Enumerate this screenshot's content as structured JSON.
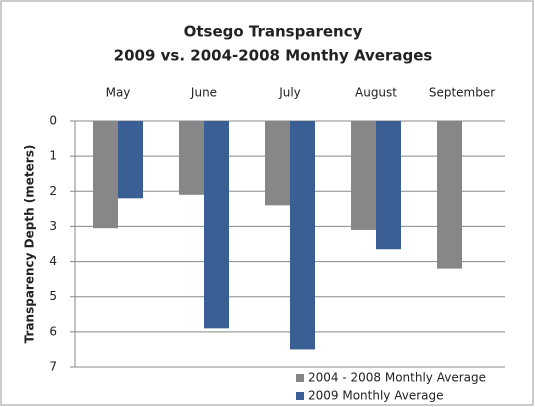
{
  "chart_data": {
    "type": "bar",
    "title": "Otsego Transparency",
    "subtitle": "2009 vs. 2004-2008 Monthy Averages",
    "y_label": "Transparency Depth (meters)",
    "categories": [
      "May",
      "June",
      "July",
      "August",
      "September"
    ],
    "series": [
      {
        "name": "2004 - 2008 Monthly Average",
        "color": "#878787",
        "values": [
          3.05,
          2.1,
          2.4,
          3.1,
          4.2
        ]
      },
      {
        "name": "2009 Monthly Average",
        "color": "#3a5f94",
        "values": [
          2.2,
          5.9,
          6.5,
          3.65,
          null
        ]
      }
    ],
    "ylim": [
      0,
      7
    ],
    "yticks": [
      0,
      1,
      2,
      3,
      4,
      5,
      6,
      7
    ],
    "y_inverted": true,
    "categories_on_top": true,
    "grid": true,
    "legend": "bottom-right"
  }
}
